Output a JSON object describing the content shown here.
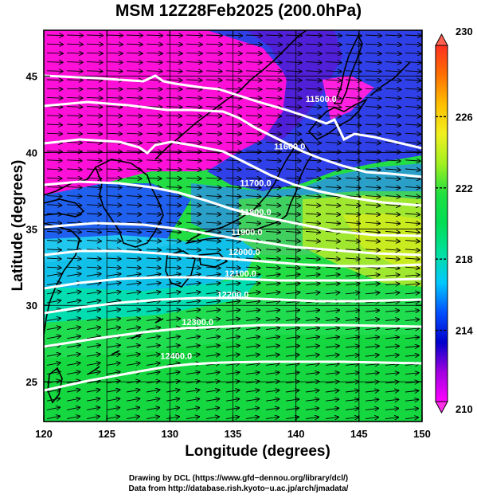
{
  "title": "MSM 12Z28Feb2025 (200.0hPa)",
  "xlabel": "Longitude (degrees)",
  "ylabel": "Latitude  (degrees)",
  "credit_line1": "Drawing by DCL (https://www.gfd−dennou.org/library/dcl/)",
  "credit_line2": "Data from http://database.rish.kyoto−u.ac.jp/arch/jmadata/",
  "colors": {
    "land_outline": "#000000",
    "contour": "#ffffff",
    "vector": "#000000"
  },
  "chart_data": {
    "type": "map",
    "projection": "equirectangular",
    "xlim": [
      120,
      150
    ],
    "ylim": [
      22.4,
      48
    ],
    "x_ticks": [
      "120",
      "125",
      "130",
      "135",
      "140",
      "145",
      "150"
    ],
    "x_tick_values": [
      120,
      125,
      130,
      135,
      140,
      145,
      150
    ],
    "y_ticks": [
      "25",
      "30",
      "35",
      "40",
      "45"
    ],
    "y_tick_values": [
      25,
      30,
      35,
      40,
      45
    ],
    "grid": true,
    "colorbar": {
      "min": 210,
      "max": 230,
      "labels": [
        "210",
        "214",
        "218",
        "222",
        "226",
        "230"
      ],
      "label_values": [
        210,
        214,
        218,
        222,
        226,
        230
      ],
      "palette": [
        "#ff00ff",
        "#a000e0",
        "#0000cc",
        "#0050ff",
        "#00c8ff",
        "#00e0a0",
        "#00dd55",
        "#20e040",
        "#a0f020",
        "#f0f020",
        "#ffc000",
        "#ff7000",
        "#ff3020"
      ]
    },
    "contours": [
      {
        "label": "11500.0",
        "lon": 142.0,
        "lat": 43.3
      },
      {
        "label": "11600.0",
        "lon": 139.5,
        "lat": 40.2
      },
      {
        "label": "11700.0",
        "lon": 136.8,
        "lat": 37.8
      },
      {
        "label": "11800.0",
        "lon": 136.8,
        "lat": 35.9
      },
      {
        "label": "11900.0",
        "lon": 136.1,
        "lat": 34.6
      },
      {
        "label": "12000.0",
        "lon": 135.9,
        "lat": 33.3
      },
      {
        "label": "12100.0",
        "lon": 135.6,
        "lat": 31.9
      },
      {
        "label": "12200.0",
        "lon": 135.0,
        "lat": 30.5
      },
      {
        "label": "12300.0",
        "lon": 132.2,
        "lat": 28.7
      },
      {
        "label": "12400.0",
        "lon": 130.5,
        "lat": 26.5
      }
    ],
    "field_description": "temperature shading (K) with geopotential height contours and wind vectors"
  }
}
